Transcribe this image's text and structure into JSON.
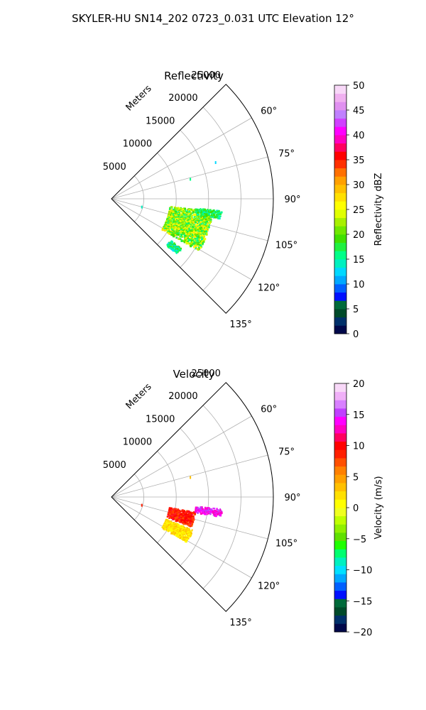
{
  "figure": {
    "suptitle": "SKYLER-HU  SN14_202  0723_0.031 UTC Elevation 12°"
  },
  "chart_data": [
    {
      "type": "heatmap",
      "projection": "polar-sector",
      "title": "Reflectivity",
      "radial_axis_label": "Meters",
      "radial_ticks": [
        5000,
        10000,
        15000,
        20000,
        25000
      ],
      "radial_tick_labels": [
        "5000",
        "10000",
        "15000",
        "20000",
        "25000"
      ],
      "rlim": [
        0,
        25000
      ],
      "angular_ticks": [
        60,
        75,
        90,
        105,
        120,
        135
      ],
      "angular_tick_labels": [
        "60°",
        "75°",
        "90°",
        "105°",
        "120°",
        "135°"
      ],
      "theta_range_deg": [
        45,
        135
      ],
      "grid": true,
      "colorbar": {
        "label": "Reflectivity dBZ",
        "range": [
          0,
          50
        ],
        "ticks": [
          0,
          5,
          10,
          15,
          20,
          25,
          30,
          35,
          40,
          45,
          50
        ],
        "tick_labels": [
          "0",
          "5",
          "10",
          "15",
          "20",
          "25",
          "30",
          "35",
          "40",
          "45",
          "50"
        ]
      },
      "echo_regions": [
        {
          "az": [
            97,
            121
          ],
          "range": [
            9000,
            15500
          ],
          "value": [
            15,
            28
          ]
        },
        {
          "az": [
            96,
            100
          ],
          "range": [
            13000,
            17000
          ],
          "value": [
            14,
            20
          ]
        },
        {
          "az": [
            125,
            130
          ],
          "range": [
            11000,
            13000
          ],
          "value": [
            12,
            20
          ]
        }
      ],
      "isolated_echoes": [
        {
          "az": 75,
          "range": 12500,
          "value": 16
        },
        {
          "az": 70,
          "range": 17000,
          "value": 13
        },
        {
          "az": 103,
          "range": 4700,
          "value": 14
        }
      ]
    },
    {
      "type": "heatmap",
      "projection": "polar-sector",
      "title": "Velocity",
      "radial_axis_label": "Meters",
      "radial_ticks": [
        5000,
        10000,
        15000,
        20000,
        25000
      ],
      "radial_tick_labels": [
        "5000",
        "10000",
        "15000",
        "20000",
        "25000"
      ],
      "rlim": [
        0,
        25000
      ],
      "angular_ticks": [
        60,
        75,
        90,
        105,
        120,
        135
      ],
      "angular_tick_labels": [
        "60°",
        "75°",
        "90°",
        "105°",
        "120°",
        "135°"
      ],
      "theta_range_deg": [
        45,
        135
      ],
      "grid": true,
      "colorbar": {
        "label": "Velocity (m/s)",
        "range": [
          -20,
          20
        ],
        "ticks": [
          -20,
          -15,
          -10,
          -5,
          0,
          5,
          10,
          15,
          20
        ],
        "tick_labels": [
          "−20",
          "−15",
          "−10",
          "−5",
          "0",
          "5",
          "10",
          "15",
          "20"
        ]
      },
      "echo_regions": [
        {
          "az": [
            100,
            110
          ],
          "range": [
            9000,
            13000
          ],
          "value": [
            7,
            11
          ]
        },
        {
          "az": [
            112,
            121
          ],
          "range": [
            9000,
            13500
          ],
          "value": [
            0,
            4
          ]
        },
        {
          "az": [
            96,
            100
          ],
          "range": [
            13000,
            17000
          ],
          "value": [
            12,
            16
          ]
        }
      ],
      "isolated_echoes": [
        {
          "az": 75,
          "range": 12500,
          "value": 3
        },
        {
          "az": 103,
          "range": 4700,
          "value": 9
        }
      ]
    }
  ],
  "colors": {
    "reflectivity_scale": [
      "#00084a",
      "#00306a",
      "#004a2a",
      "#006a3a",
      "#0010ff",
      "#0060ff",
      "#00a8ff",
      "#00d8ff",
      "#00f0c0",
      "#00ff88",
      "#20f040",
      "#40e000",
      "#70e800",
      "#a8f000",
      "#e0ff00",
      "#ffff00",
      "#ffe000",
      "#ffc000",
      "#ffa000",
      "#ff7000",
      "#ff3000",
      "#ff0000",
      "#ff0060",
      "#ff00c0",
      "#ff00ff",
      "#d040ff",
      "#c080ff",
      "#e090f0",
      "#f0b0f0",
      "#f8d8f8"
    ],
    "velocity_scale": [
      "#00084a",
      "#00306a",
      "#004a2a",
      "#006a3a",
      "#0010ff",
      "#0060ff",
      "#00a8ff",
      "#00e0ff",
      "#00f0c0",
      "#00ff70",
      "#20ff00",
      "#60e000",
      "#90f000",
      "#c0ff00",
      "#f0ff20",
      "#ffff00",
      "#ffe000",
      "#ffc000",
      "#ffa000",
      "#ff8000",
      "#ff5000",
      "#ff2000",
      "#ff0000",
      "#ff0060",
      "#ff00c0",
      "#ff00ff",
      "#c040ff",
      "#d880ff",
      "#f0b0f8",
      "#f8d8f8"
    ]
  }
}
